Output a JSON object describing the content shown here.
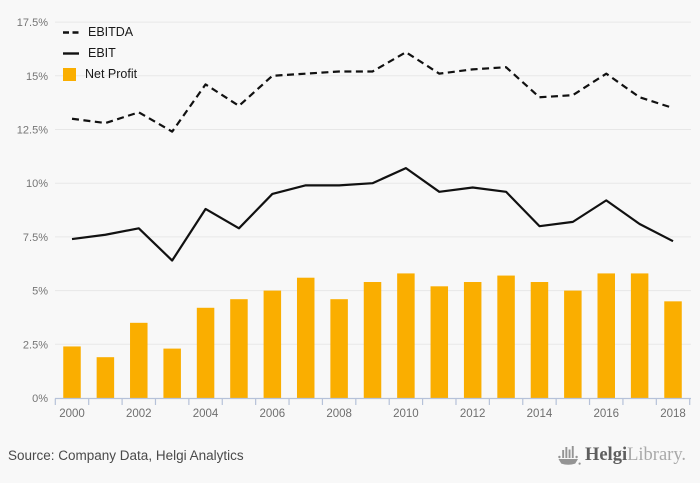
{
  "colors": {
    "background": "#f8f8f8",
    "bar": "#FAAE00",
    "line": "#111111",
    "grid": "#e7e7e7",
    "axis": "#b6c2d9",
    "ytick_text": "#757575",
    "xtick_text": "#6f6f6f"
  },
  "chart_data": {
    "type": "combo-bar-line",
    "title": "",
    "xlabel": "",
    "ylabel": "",
    "ylim": [
      0,
      17.5
    ],
    "grid": true,
    "legend_position": "top-left",
    "yticks": [
      "0%",
      "2.5%",
      "5%",
      "7.5%",
      "10%",
      "12.5%",
      "15%",
      "17.5%"
    ],
    "categories": [
      "2000",
      "2001",
      "2002",
      "2003",
      "2004",
      "2005",
      "2006",
      "2007",
      "2008",
      "2009",
      "2010",
      "2011",
      "2012",
      "2013",
      "2014",
      "2015",
      "2016",
      "2017",
      "2018"
    ],
    "xtick_labels_shown": [
      "2000",
      "2002",
      "2004",
      "2006",
      "2008",
      "2010",
      "2012",
      "2014",
      "2016",
      "2018"
    ],
    "unit": "%",
    "series": [
      {
        "name": "EBITDA",
        "type": "line",
        "line_style": "dashed",
        "color": "#111111",
        "values": [
          13.0,
          12.8,
          13.3,
          12.4,
          14.6,
          13.6,
          15.0,
          15.1,
          15.2,
          15.2,
          16.1,
          15.1,
          15.3,
          15.4,
          14.0,
          14.1,
          15.1,
          14.0,
          13.5
        ]
      },
      {
        "name": "EBIT",
        "type": "line",
        "line_style": "solid",
        "color": "#111111",
        "values": [
          7.4,
          7.6,
          7.9,
          6.4,
          8.8,
          7.9,
          9.5,
          9.9,
          9.9,
          10.0,
          10.7,
          9.6,
          9.8,
          9.6,
          8.0,
          8.2,
          9.2,
          8.1,
          7.3
        ]
      },
      {
        "name": "Net Profit",
        "type": "bar",
        "color": "#FAAE00",
        "values": [
          2.4,
          1.9,
          3.5,
          2.3,
          4.2,
          4.6,
          5.0,
          5.6,
          4.6,
          5.4,
          5.8,
          5.2,
          5.4,
          5.7,
          5.4,
          5.0,
          5.8,
          5.8,
          4.5
        ]
      }
    ]
  },
  "footer": {
    "source": "Source: Company Data, Helgi Analytics",
    "brand_primary": "Helgi",
    "brand_secondary": "Library."
  }
}
